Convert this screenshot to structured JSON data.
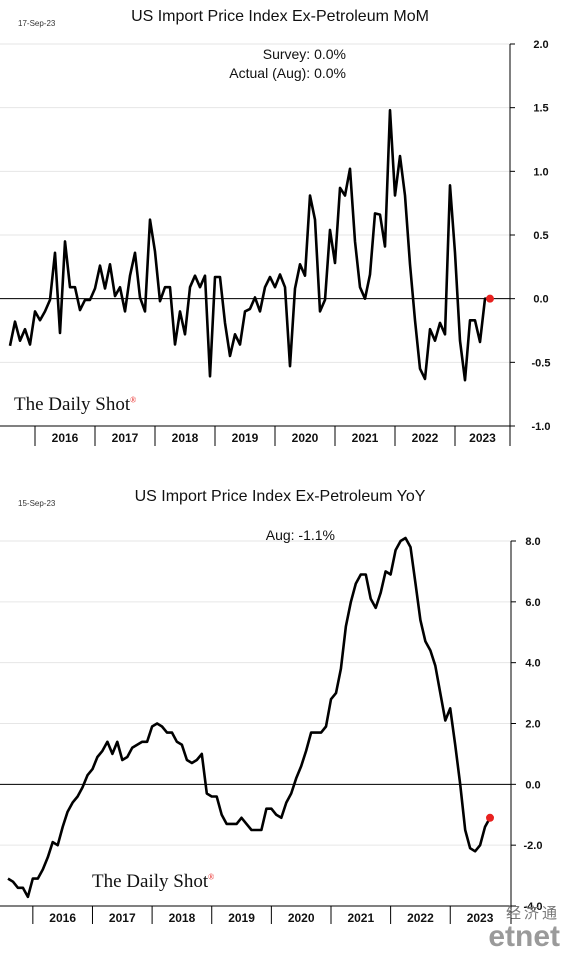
{
  "charts": [
    {
      "date": "17-Sep-23",
      "annotation_lines": [
        "Survey:  0.0%",
        "Actual (Aug):  0.0%"
      ]
    },
    {
      "date": "15-Sep-23",
      "annotation_lines": [
        "Aug:   -1.1%"
      ]
    }
  ],
  "branding": {
    "logo": "The Daily Shot",
    "mark": "®"
  },
  "watermark": {
    "chinese": "经济通",
    "latin": "etnet"
  },
  "colors": {
    "line": "#000000",
    "marker": "#e8211f",
    "zero_line": "#000000",
    "grid": "#e6e6e6"
  },
  "chart_data": [
    {
      "type": "line",
      "title": "US Import Price Index Ex-Petroleum MoM",
      "xlabel": "",
      "ylabel": "",
      "ylim": [
        -1.0,
        2.0
      ],
      "y_ticks": [
        "2.0",
        "1.5",
        "1.0",
        "0.5",
        "0.0",
        "-0.5",
        "-1.0"
      ],
      "x_tick_labels": [
        "2016",
        "2017",
        "2018",
        "2019",
        "2020",
        "2021",
        "2022",
        "2023"
      ],
      "x_start": "2015-08",
      "grid": true,
      "series": [
        {
          "values": [
            -0.37,
            -0.18,
            -0.33,
            -0.24,
            -0.36,
            -0.1,
            -0.17,
            -0.1,
            -0.01,
            0.36,
            -0.27,
            0.45,
            0.09,
            0.09,
            -0.09,
            -0.01,
            -0.01,
            0.08,
            0.26,
            0.08,
            0.27,
            0.02,
            0.09,
            -0.1,
            0.18,
            0.36,
            0.01,
            -0.1,
            0.62,
            0.37,
            -0.02,
            0.09,
            0.09,
            -0.36,
            -0.1,
            -0.28,
            0.09,
            0.18,
            0.09,
            0.18,
            -0.61,
            0.17,
            0.17,
            -0.19,
            -0.45,
            -0.28,
            -0.36,
            -0.1,
            -0.08,
            0.01,
            -0.1,
            0.09,
            0.17,
            0.09,
            0.19,
            0.09,
            -0.53,
            0.08,
            0.27,
            0.18,
            0.81,
            0.62,
            -0.1,
            -0.01,
            0.54,
            0.28,
            0.87,
            0.81,
            1.02,
            0.45,
            0.09,
            0.0,
            0.19,
            0.67,
            0.66,
            0.41,
            1.48,
            0.81,
            1.12,
            0.81,
            0.27,
            -0.17,
            -0.55,
            -0.63,
            -0.24,
            -0.33,
            -0.19,
            -0.28,
            0.89,
            0.36,
            -0.33,
            -0.64,
            -0.17,
            -0.17,
            -0.34,
            0.0,
            0.0
          ],
          "last_point": 0.0
        }
      ]
    },
    {
      "type": "line",
      "title": "US Import Price Index Ex-Petroleum YoY",
      "xlabel": "",
      "ylabel": "",
      "ylim": [
        -4.0,
        8.0
      ],
      "y_ticks": [
        "8.0",
        "6.0",
        "4.0",
        "2.0",
        "0.0",
        "-2.0",
        "-4.0"
      ],
      "x_tick_labels": [
        "2016",
        "2017",
        "2018",
        "2019",
        "2020",
        "2021",
        "2022",
        "2023"
      ],
      "x_start": "2015-08",
      "grid": true,
      "series": [
        {
          "values": [
            -3.1,
            -3.2,
            -3.4,
            -3.4,
            -3.7,
            -3.1,
            -3.1,
            -2.8,
            -2.4,
            -1.9,
            -2.0,
            -1.4,
            -0.9,
            -0.6,
            -0.4,
            -0.1,
            0.3,
            0.5,
            0.9,
            1.1,
            1.4,
            1.0,
            1.4,
            0.8,
            0.9,
            1.2,
            1.3,
            1.4,
            1.4,
            1.9,
            2.0,
            1.9,
            1.7,
            1.7,
            1.4,
            1.3,
            0.8,
            0.7,
            0.8,
            1.0,
            -0.3,
            -0.4,
            -0.4,
            -1.0,
            -1.3,
            -1.3,
            -1.3,
            -1.1,
            -1.3,
            -1.5,
            -1.5,
            -1.5,
            -0.8,
            -0.8,
            -1.0,
            -1.1,
            -0.6,
            -0.3,
            0.2,
            0.6,
            1.1,
            1.7,
            1.7,
            1.7,
            1.9,
            2.8,
            3.0,
            3.8,
            5.2,
            6.0,
            6.6,
            6.9,
            6.9,
            6.1,
            5.8,
            6.3,
            7.0,
            6.9,
            7.7,
            8.0,
            8.1,
            7.8,
            6.6,
            5.4,
            4.7,
            4.4,
            3.9,
            3.0,
            2.1,
            2.5,
            1.3,
            0.0,
            -1.5,
            -2.1,
            -2.2,
            -2.0,
            -1.4,
            -1.1
          ],
          "last_point": -1.1
        }
      ]
    }
  ]
}
